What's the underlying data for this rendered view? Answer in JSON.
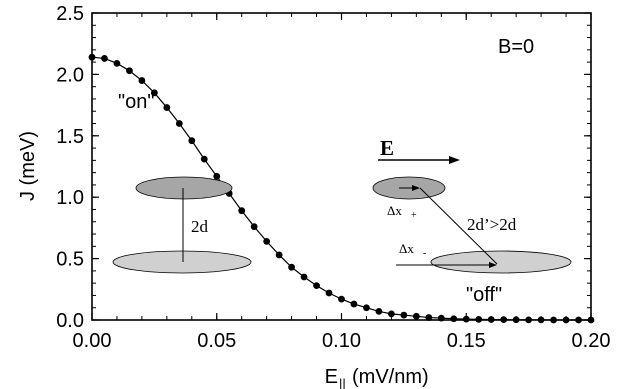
{
  "chart_data": {
    "type": "line",
    "xlabel": "E",
    "xlabel_subscript": "||",
    "xlabel_units": "(mV/nm)",
    "ylabel": "J (meV)",
    "xlim": [
      0.0,
      0.2
    ],
    "ylim": [
      0.0,
      2.5
    ],
    "x_ticks": [
      "0.00",
      "0.05",
      "0.10",
      "0.15",
      "0.20"
    ],
    "y_ticks": [
      "0.0",
      "0.5",
      "1.0",
      "1.5",
      "2.0",
      "2.5"
    ],
    "grid": false,
    "series": [
      {
        "marker": "filled-circle",
        "color": "#000000",
        "x": [
          0.0,
          0.005,
          0.01,
          0.015,
          0.02,
          0.025,
          0.03,
          0.035,
          0.04,
          0.045,
          0.05,
          0.055,
          0.06,
          0.065,
          0.07,
          0.075,
          0.08,
          0.085,
          0.09,
          0.095,
          0.1,
          0.105,
          0.11,
          0.115,
          0.12,
          0.125,
          0.13,
          0.135,
          0.14,
          0.145,
          0.15,
          0.155,
          0.16,
          0.165,
          0.17,
          0.175,
          0.18,
          0.185,
          0.19,
          0.195,
          0.2
        ],
        "y": [
          2.14,
          2.13,
          2.09,
          2.03,
          1.95,
          1.85,
          1.73,
          1.6,
          1.46,
          1.31,
          1.17,
          1.03,
          0.89,
          0.76,
          0.64,
          0.53,
          0.43,
          0.35,
          0.28,
          0.22,
          0.17,
          0.13,
          0.1,
          0.07,
          0.05,
          0.04,
          0.03,
          0.02,
          0.015,
          0.01,
          0.007,
          0.005,
          0.004,
          0.003,
          0.002,
          0.001,
          0.001,
          0.0,
          0.0,
          0.0,
          0.0
        ]
      }
    ],
    "annotations": {
      "b_label": "B=0",
      "on_label": "\"on\"",
      "off_label": "\"off\"",
      "field_label": "E",
      "separation_label": "2d",
      "shifted_separation_label": "2d’>2d",
      "dx_plus": "Δx",
      "dx_plus_sub": "+",
      "dx_minus": "Δx",
      "dx_minus_sub": "-"
    },
    "colors": {
      "ellipse_dark": "#a6a6a6",
      "ellipse_light": "#d0d0d0",
      "line": "#000000"
    }
  }
}
